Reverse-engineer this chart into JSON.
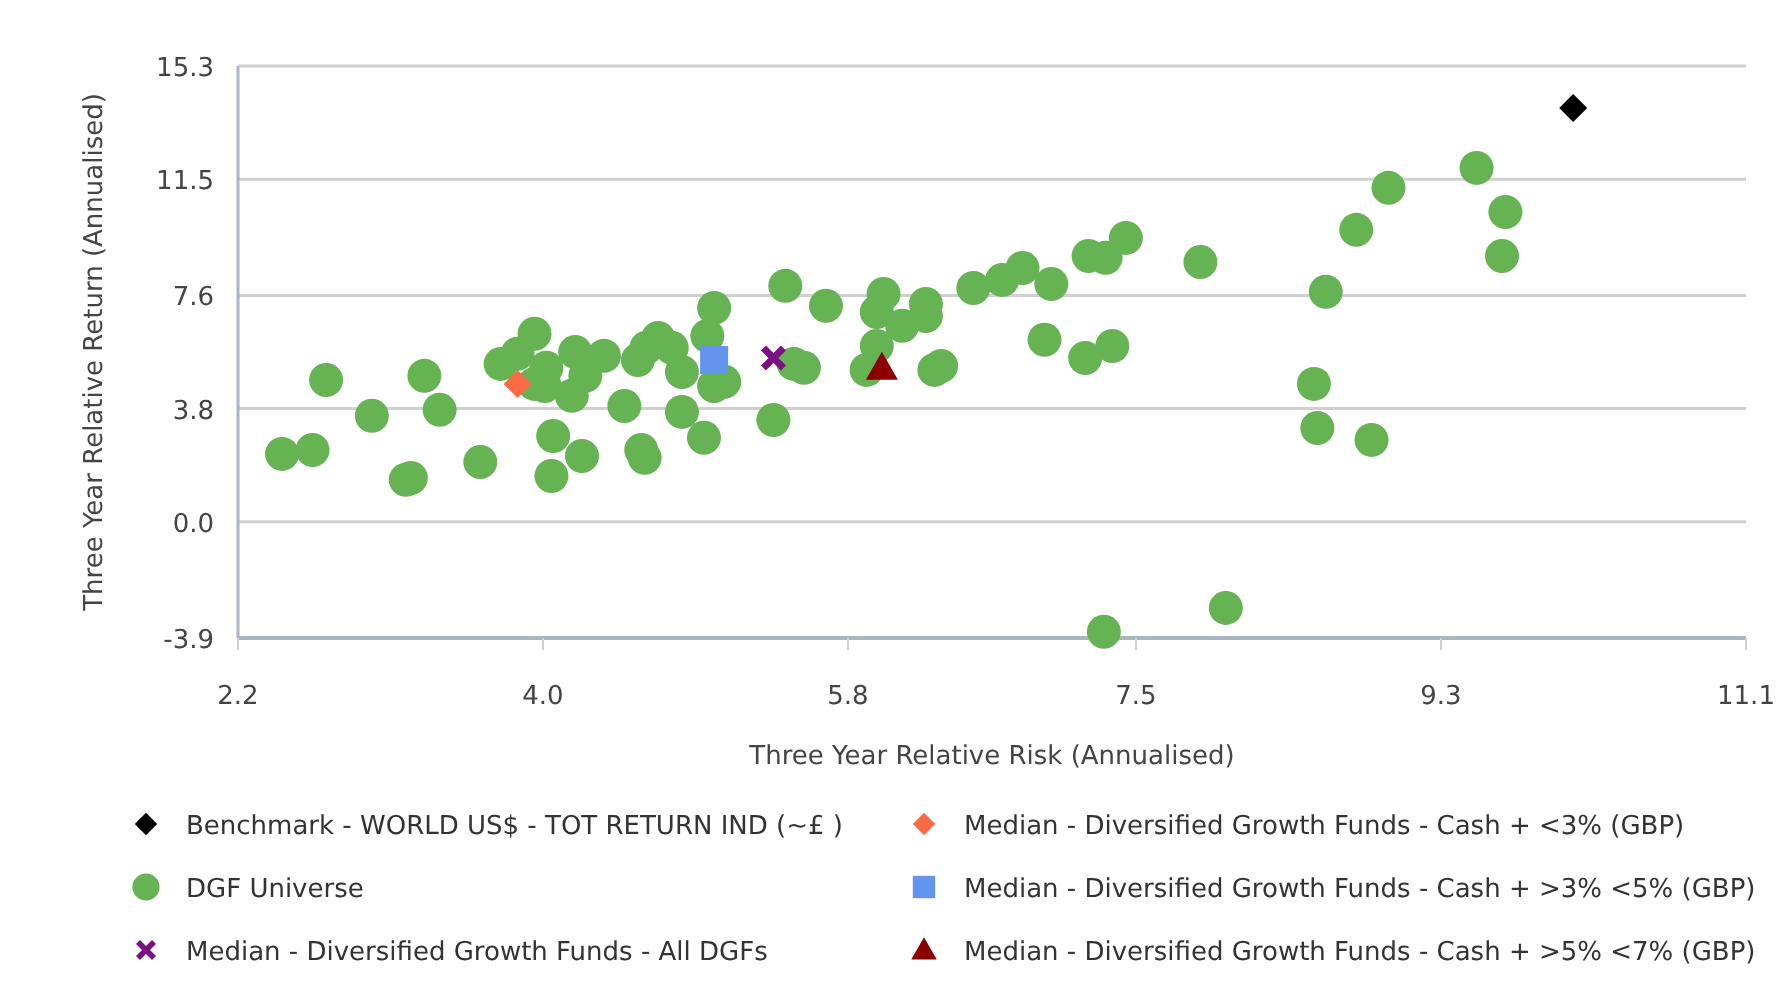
{
  "chart_data": {
    "type": "scatter",
    "xlabel": "Three Year Relative Risk (Annualised)",
    "ylabel": "Three Year Relative Return (Annualised)",
    "xlim": [
      2.2,
      11.1
    ],
    "xticks": [
      2.2,
      {
        "value": 4,
        "label": "4.0"
      },
      5.8,
      7.5,
      9.3,
      11.1
    ],
    "ylim": [
      -3.9,
      15.3
    ],
    "yticks": [
      -3.9,
      {
        "value": 0,
        "label": "0.0"
      },
      3.8,
      7.6,
      11.5,
      15.3
    ],
    "grid": "y",
    "legend": "bottom",
    "series": [
      {
        "name": "Benchmark - WORLD US$ - TOT RETURN IND (~£ )",
        "color": "#000000",
        "marker": "diamond",
        "x": [
          10.08
        ],
        "values": [
          13.89
        ]
      },
      {
        "name": "DGF Universe",
        "color": "#66b354",
        "marker": "circle",
        "x": [
          2.46,
          2.64,
          2.72,
          2.99,
          3.19,
          3.22,
          3.3,
          3.39,
          3.63,
          3.75,
          3.85,
          3.95,
          4.02,
          4.01,
          3.95,
          4.06,
          4.05,
          4.17,
          4.19,
          4.25,
          4.36,
          4.23,
          4.48,
          4.56,
          4.61,
          4.68,
          4.76,
          4.82,
          4.82,
          4.58,
          4.6,
          4.95,
          4.97,
          5.01,
          5.01,
          5.07,
          5.36,
          5.43,
          5.48,
          5.54,
          5.67,
          6.01,
          5.97,
          6.12,
          5.97,
          5.91,
          6.26,
          6.26,
          6.31,
          6.35,
          6.54,
          6.71,
          6.83,
          7.0,
          6.96,
          7.2,
          7.36,
          7.22,
          7.32,
          7.44,
          7.88,
          7.31,
          8.03,
          8.62,
          8.8,
          8.99,
          9.51,
          9.68,
          9.66,
          8.55,
          8.57,
          8.89
        ],
        "values": [
          2.28,
          2.41,
          4.76,
          3.56,
          1.41,
          1.47,
          4.9,
          3.76,
          2.01,
          5.3,
          5.64,
          6.31,
          5.17,
          4.56,
          4.63,
          2.88,
          1.54,
          4.23,
          5.7,
          4.9,
          5.57,
          2.21,
          3.89,
          5.43,
          5.84,
          6.17,
          5.84,
          5.03,
          3.69,
          2.41,
          2.15,
          2.82,
          6.24,
          7.18,
          4.56,
          4.7,
          3.42,
          7.92,
          5.3,
          5.17,
          7.25,
          7.65,
          7.04,
          6.58,
          5.9,
          5.1,
          7.31,
          6.91,
          5.1,
          5.23,
          7.85,
          8.12,
          8.52,
          7.98,
          6.11,
          5.5,
          5.9,
          8.92,
          8.86,
          9.53,
          8.72,
          -3.69,
          -2.89,
          7.72,
          9.8,
          11.21,
          11.88,
          10.4,
          8.92,
          4.63,
          3.15,
          2.75
        ]
      },
      {
        "name": "Median -  Diversified Growth Funds - All DGFs",
        "color": "#7b0f83",
        "marker": "cross",
        "x": [
          5.36
        ],
        "values": [
          5.5
        ]
      },
      {
        "name": "Median -  Diversified Growth Funds - Cash + <3% (GBP)",
        "color": "#f96a45",
        "marker": "diamond",
        "x": [
          3.85
        ],
        "values": [
          4.63
        ]
      },
      {
        "name": "Median -  Diversified Growth Funds - Cash + >3% <5% (GBP)",
        "color": "#6495ed",
        "marker": "square",
        "x": [
          5.01
        ],
        "values": [
          5.43
        ]
      },
      {
        "name": "Median -  Diversified Growth Funds - Cash + >5% <7% (GBP)",
        "color": "#8b0000",
        "marker": "triangle",
        "x": [
          6.0
        ],
        "values": [
          5.17
        ]
      }
    ]
  }
}
